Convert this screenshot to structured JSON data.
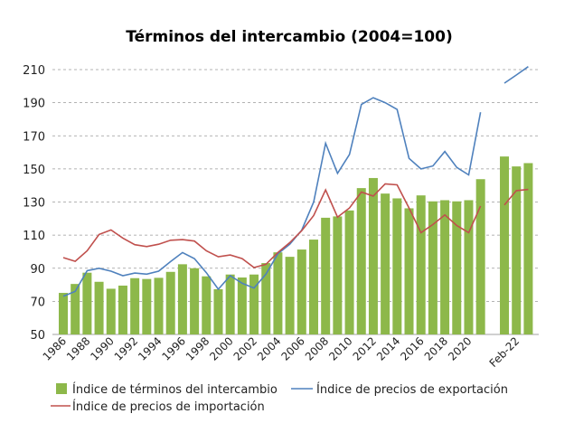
{
  "chart_data": {
    "type": "bar+line",
    "title": "Términos del intercambio (2004=100)",
    "xlabel": "",
    "ylabel": "",
    "ylim": [
      50,
      210
    ],
    "yticks": [
      50,
      70,
      90,
      110,
      130,
      150,
      170,
      190,
      210
    ],
    "grid": true,
    "legend_position": "bottom",
    "categories": [
      "1986",
      "1987",
      "1988",
      "1989",
      "1990",
      "1991",
      "1992",
      "1993",
      "1994",
      "1995",
      "1996",
      "1997",
      "1998",
      "1999",
      "2000",
      "2001",
      "2002",
      "2003",
      "2004",
      "2005",
      "2006",
      "2007",
      "2008",
      "2009",
      "2010",
      "2011",
      "2012",
      "2013",
      "2014",
      "2015",
      "2016",
      "2017",
      "2018",
      "2019",
      "2020",
      "2021",
      "",
      "",
      "Feb-22",
      ""
    ],
    "xtick_labels": [
      "1986",
      "",
      "1988",
      "",
      "1990",
      "",
      "1992",
      "",
      "1994",
      "",
      "1996",
      "",
      "1998",
      "",
      "2000",
      "",
      "2002",
      "",
      "2004",
      "",
      "2006",
      "",
      "2008",
      "",
      "2010",
      "",
      "2012",
      "",
      "2014",
      "",
      "2016",
      "",
      "2018",
      "",
      "2020",
      "",
      "",
      "",
      "Feb-22",
      ""
    ],
    "series": [
      {
        "name": "Índice de términos del intercambio",
        "type": "bar",
        "color": "#8db84a",
        "values": [
          75.1,
          80.5,
          87.3,
          81.8,
          77.6,
          79.5,
          84,
          83.5,
          84.2,
          87.8,
          92.4,
          90,
          85.1,
          77.3,
          86.2,
          84.4,
          86.2,
          93.1,
          99.6,
          96.9,
          101.3,
          107.3,
          120.5,
          121.3,
          124.9,
          138.4,
          144.5,
          135.1,
          132.2,
          126.2,
          134,
          130.4,
          131.1,
          130.4,
          131.1,
          143.8,
          null,
          157.5,
          151.5,
          153.5
        ]
      },
      {
        "name": "Índice de precios de exportación",
        "type": "line",
        "color": "#4f81bd",
        "values": [
          73.1,
          76,
          88.5,
          90,
          88.2,
          85.5,
          87.1,
          86.4,
          88.2,
          94,
          99.5,
          95.8,
          87.3,
          77.3,
          85.5,
          80.9,
          78,
          86.4,
          98.7,
          104.5,
          113,
          130,
          165.5,
          147.3,
          158.7,
          189,
          193,
          190,
          186,
          156.4,
          150,
          151.8,
          160.5,
          150.9,
          146.4,
          184.2,
          null,
          201.8,
          206.7,
          211.8
        ]
      },
      {
        "name": "Índice de precios de importación",
        "type": "line",
        "color": "#c0504d",
        "values": [
          96.4,
          94.2,
          100.5,
          110.4,
          113.1,
          108.2,
          104.2,
          103.1,
          104.5,
          106.9,
          107.3,
          106.4,
          100.5,
          96.9,
          98,
          95.8,
          90.4,
          92.4,
          99.5,
          105.5,
          112.7,
          121.8,
          137.3,
          120.9,
          126.4,
          136,
          133.6,
          140.9,
          140.4,
          126.4,
          111.5,
          116.4,
          122.2,
          115.8,
          111.5,
          127.6,
          null,
          128.2,
          136.9,
          137.6
        ]
      }
    ]
  }
}
